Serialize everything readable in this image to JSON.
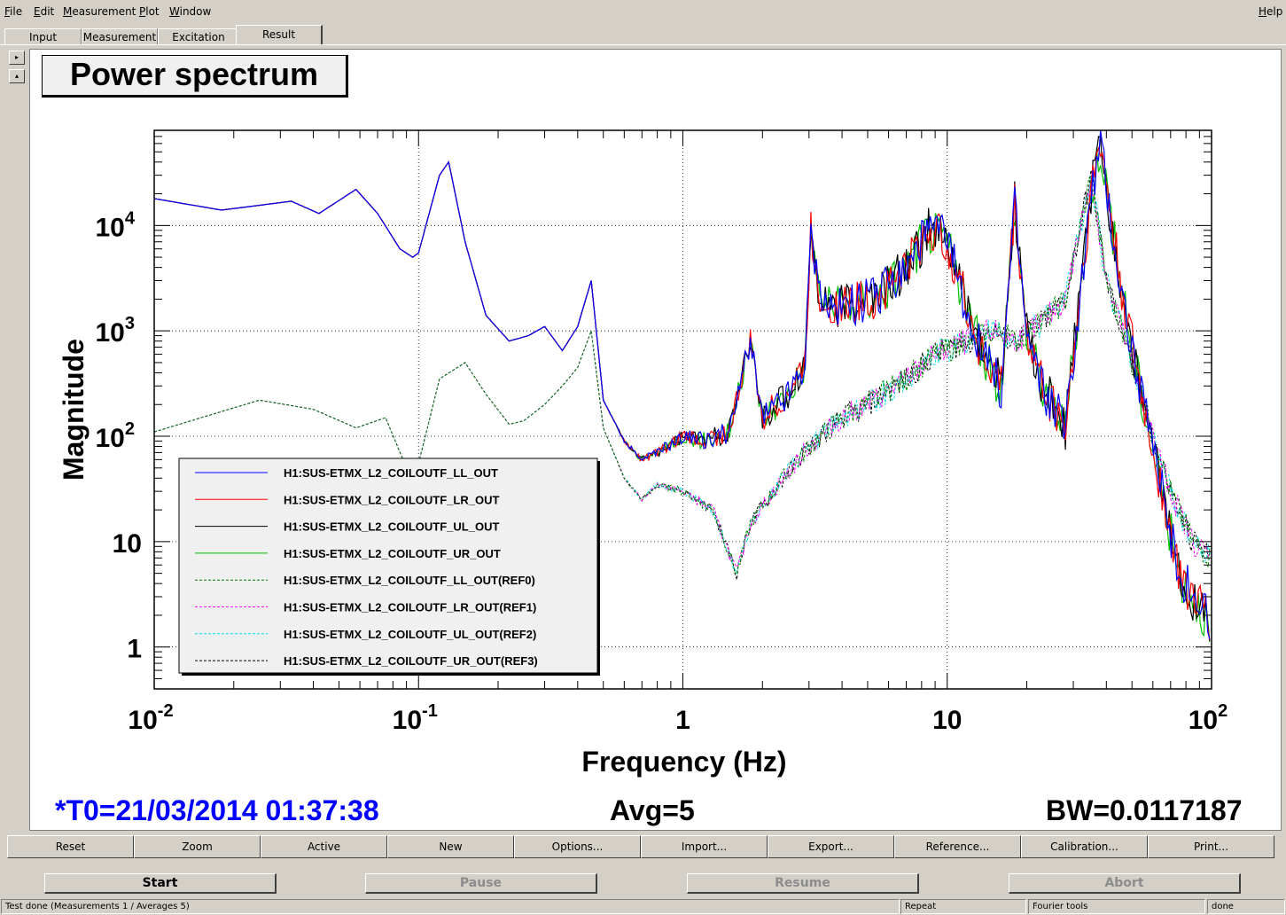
{
  "menubar": {
    "items": [
      {
        "label": "File",
        "u": "F",
        "rest": "ile"
      },
      {
        "label": "Edit",
        "u": "E",
        "rest": "dit"
      },
      {
        "label": "Measurement",
        "u": "M",
        "rest": "easurement"
      },
      {
        "label": "Plot",
        "u": "P",
        "rest": "lot"
      },
      {
        "label": "Window",
        "u": "W",
        "rest": "indow"
      }
    ],
    "help": {
      "label": "Help",
      "u": "H",
      "rest": "elp"
    }
  },
  "tabs": [
    {
      "label": "Input",
      "active": false
    },
    {
      "label": "Measurement",
      "active": false
    },
    {
      "label": "Excitation",
      "active": false
    },
    {
      "label": "Result",
      "active": true
    }
  ],
  "side_buttons": {
    "up": "▸",
    "down": "▴"
  },
  "plot": {
    "title": "Power spectrum",
    "status_t0": "*T0=21/03/2014 01:37:38",
    "status_avg": "Avg=5",
    "status_bw": "BW=0.0117187",
    "colors": {
      "t0": "#0000ff",
      "axis": "#000000",
      "grid": "#000000"
    }
  },
  "chart_data": {
    "type": "line",
    "title": "Power spectrum",
    "xlabel": "Frequency (Hz)",
    "ylabel": "Magnitude",
    "xscale": "log",
    "yscale": "log",
    "xlim": [
      0.01,
      100
    ],
    "ylim": [
      0.4,
      80000
    ],
    "grid": true,
    "x_ticks": [
      {
        "value": 0.01,
        "base": "10",
        "exp": "-2"
      },
      {
        "value": 0.1,
        "base": "10",
        "exp": "-1"
      },
      {
        "value": 1,
        "base": "1",
        "exp": ""
      },
      {
        "value": 10,
        "base": "10",
        "exp": ""
      },
      {
        "value": 100,
        "base": "10",
        "exp": "2"
      }
    ],
    "y_ticks": [
      {
        "value": 1,
        "base": "1",
        "exp": ""
      },
      {
        "value": 10,
        "base": "10",
        "exp": ""
      },
      {
        "value": 100,
        "base": "10",
        "exp": "2"
      },
      {
        "value": 1000,
        "base": "10",
        "exp": "3"
      },
      {
        "value": 10000,
        "base": "10",
        "exp": "4"
      }
    ],
    "legend_position": "lower-left",
    "series": [
      {
        "name": "H1:SUS-ETMX_L2_COILOUTF_LL_OUT",
        "color": "#0000ff",
        "dash": false,
        "group": "live"
      },
      {
        "name": "H1:SUS-ETMX_L2_COILOUTF_LR_OUT",
        "color": "#ff0000",
        "dash": false,
        "group": "live"
      },
      {
        "name": "H1:SUS-ETMX_L2_COILOUTF_UL_OUT",
        "color": "#000000",
        "dash": false,
        "group": "live"
      },
      {
        "name": "H1:SUS-ETMX_L2_COILOUTF_UR_OUT",
        "color": "#00c000",
        "dash": false,
        "group": "live"
      },
      {
        "name": "H1:SUS-ETMX_L2_COILOUTF_LL_OUT(REF0)",
        "color": "#008000",
        "dash": true,
        "group": "ref"
      },
      {
        "name": "H1:SUS-ETMX_L2_COILOUTF_LR_OUT(REF1)",
        "color": "#ff00ff",
        "dash": true,
        "group": "ref"
      },
      {
        "name": "H1:SUS-ETMX_L2_COILOUTF_UL_OUT(REF2)",
        "color": "#00e0e0",
        "dash": true,
        "group": "ref"
      },
      {
        "name": "H1:SUS-ETMX_L2_COILOUTF_UR_OUT(REF3)",
        "color": "#000000",
        "dash": true,
        "group": "ref"
      }
    ],
    "live_trace": {
      "x": [
        0.01,
        0.018,
        0.033,
        0.042,
        0.058,
        0.07,
        0.085,
        0.095,
        0.1,
        0.12,
        0.13,
        0.15,
        0.18,
        0.22,
        0.26,
        0.3,
        0.35,
        0.4,
        0.45,
        0.5,
        0.6,
        0.7,
        0.8,
        1.0,
        1.2,
        1.5,
        1.8,
        2.0,
        2.5,
        2.9,
        3.05,
        3.3,
        3.8,
        4.5,
        5.5,
        7.0,
        8.5,
        10,
        12,
        14,
        16,
        18,
        20,
        23,
        28,
        35,
        38,
        45,
        55,
        65,
        75,
        85,
        95,
        100
      ],
      "y": [
        18000,
        14000,
        17000,
        13000,
        22000,
        13000,
        6000,
        5000,
        5500,
        30000,
        40000,
        7000,
        1400,
        800,
        900,
        1100,
        650,
        1100,
        3000,
        220,
        90,
        60,
        70,
        100,
        90,
        110,
        800,
        150,
        250,
        500,
        9000,
        2000,
        1700,
        1800,
        2200,
        4000,
        9000,
        7000,
        1500,
        500,
        300,
        16000,
        900,
        300,
        120,
        20000,
        60000,
        3000,
        200,
        30,
        5,
        3,
        2,
        0.8
      ]
    },
    "ref_trace": {
      "x": [
        0.01,
        0.025,
        0.04,
        0.058,
        0.075,
        0.09,
        0.1,
        0.12,
        0.15,
        0.18,
        0.22,
        0.25,
        0.3,
        0.35,
        0.4,
        0.45,
        0.5,
        0.6,
        0.7,
        0.8,
        1.0,
        1.3,
        1.6,
        1.8,
        2.2,
        3.0,
        4.0,
        5.0,
        7.0,
        9.0,
        12,
        15,
        18,
        22,
        28,
        35,
        40,
        50,
        60,
        70,
        85,
        100
      ],
      "y": [
        110,
        220,
        180,
        120,
        150,
        50,
        55,
        350,
        500,
        250,
        130,
        140,
        200,
        300,
        450,
        1000,
        120,
        40,
        25,
        35,
        30,
        20,
        5,
        15,
        30,
        80,
        150,
        200,
        350,
        600,
        800,
        1000,
        800,
        1100,
        2000,
        30000,
        3000,
        500,
        100,
        30,
        10,
        7
      ]
    }
  },
  "controls": [
    "Reset",
    "Zoom",
    "Active",
    "New",
    "Options...",
    "Import...",
    "Export...",
    "Reference...",
    "Calibration...",
    "Print..."
  ],
  "run_buttons": [
    {
      "label": "Start",
      "enabled": true
    },
    {
      "label": "Pause",
      "enabled": false
    },
    {
      "label": "Resume",
      "enabled": false
    },
    {
      "label": "Abort",
      "enabled": false
    }
  ],
  "statusbar": {
    "message": "Test done (Measurements 1 / Averages 5)",
    "mode": "Repeat",
    "tool": "Fourier tools",
    "state": "done"
  }
}
